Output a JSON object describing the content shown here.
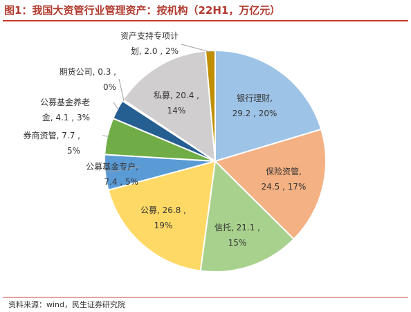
{
  "title": "图1：我国大资管行业管理资产：按机构（22H1，万亿元）",
  "source": "资料来源：wind，民生证券研究院",
  "chart_data": {
    "type": "pie",
    "title": "图1：我国大资管行业管理资产：按机构（22H1，万亿元）",
    "unit": "万亿元",
    "slices": [
      {
        "name": "银行理财",
        "value": 29.2,
        "percent": "20%",
        "color": "#9dc3e6",
        "label_lines": [
          "银行理财,",
          "29.2 , 20%"
        ]
      },
      {
        "name": "保险资管",
        "value": 24.5,
        "percent": "17%",
        "color": "#f4b183",
        "label_lines": [
          "保险资管,",
          "24.5 , 17%"
        ]
      },
      {
        "name": "信托",
        "value": 21.1,
        "percent": "15%",
        "color": "#a9d18e",
        "label_lines": [
          "信托, 21.1 ,",
          "15%"
        ]
      },
      {
        "name": "公募",
        "value": 26.8,
        "percent": "19%",
        "color": "#ffd966",
        "label_lines": [
          "公募, 26.8 ,",
          "19%"
        ]
      },
      {
        "name": "公募基金专户",
        "value": 7.4,
        "percent": "5%",
        "color": "#5b9bd5",
        "label_lines": [
          "公募基金专户,",
          "7.4 , 5%"
        ]
      },
      {
        "name": "券商资管",
        "value": 7.7,
        "percent": "5%",
        "color": "#70ad47",
        "label_lines": [
          "券商资管, 7.7 ,",
          "5%"
        ]
      },
      {
        "name": "公募基金养老金",
        "value": 4.1,
        "percent": "3%",
        "color": "#255e91",
        "label_lines": [
          "公募基金养老",
          "金, 4.1 , 3%"
        ]
      },
      {
        "name": "期货公司",
        "value": 0.3,
        "percent": "0%",
        "color": "#a5a5a5",
        "label_lines": [
          "期货公司, 0.3 ,",
          "0%"
        ]
      },
      {
        "name": "私募",
        "value": 20.4,
        "percent": "14%",
        "color": "#d0cece",
        "label_lines": [
          "私募, 20.4 ,",
          "14%"
        ]
      },
      {
        "name": "资产支持专项计划",
        "value": 2.0,
        "percent": "2%",
        "color": "#bf8f00",
        "label_lines": [
          "资产支持专项计",
          "划, 2.0 , 2%"
        ]
      }
    ]
  }
}
